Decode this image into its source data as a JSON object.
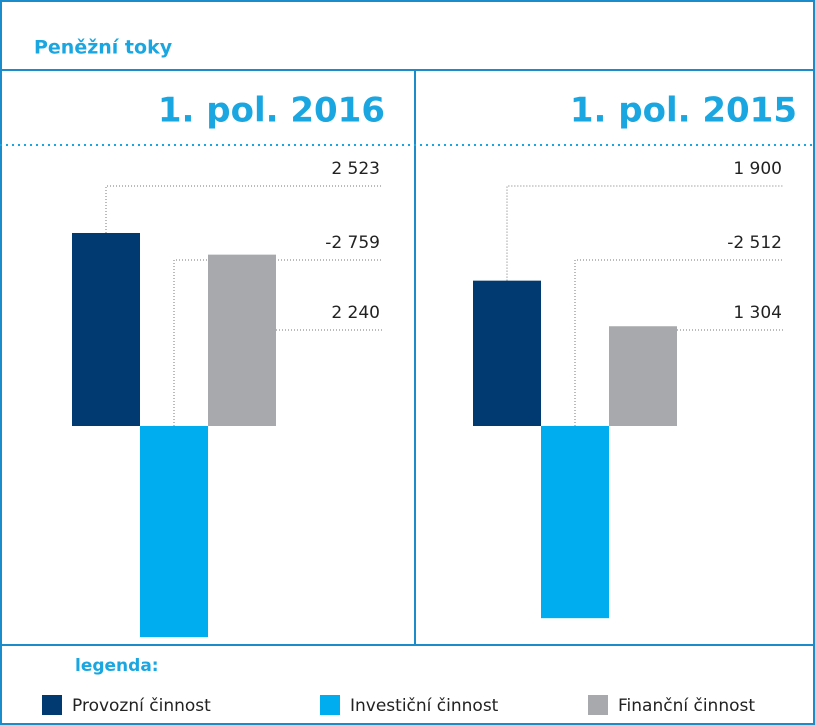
{
  "title": "Peněžní toky",
  "legend": {
    "title": "legenda:",
    "items": [
      {
        "name": "Provozní činnost",
        "color": "#003a70"
      },
      {
        "name": "Investiční činnost",
        "color": "#00aeef"
      },
      {
        "name": "Finanční činnost",
        "color": "#a7a9ac"
      }
    ]
  },
  "chart_data": [
    {
      "type": "bar",
      "title": "1. pol. 2016",
      "values": [
        2523,
        -2759,
        2240
      ],
      "value_labels": [
        "2 523",
        "-2 759",
        "2 240"
      ],
      "colors": [
        "#003a70",
        "#00aeef",
        "#a7a9ac"
      ]
    },
    {
      "type": "bar",
      "title": "1. pol. 2015",
      "values": [
        1900,
        -2512,
        1304
      ],
      "value_labels": [
        "1 900",
        "-2 512",
        "1 304"
      ],
      "colors": [
        "#003a70",
        "#00aeef",
        "#a7a9ac"
      ]
    }
  ]
}
